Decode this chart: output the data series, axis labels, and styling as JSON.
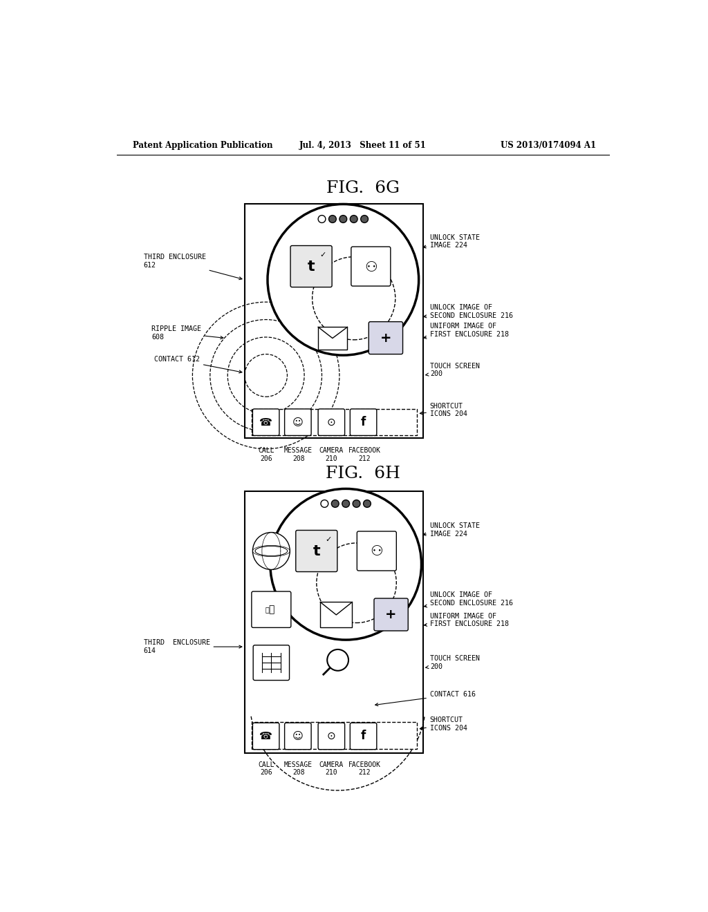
{
  "bg_color": "#ffffff",
  "header_left": "Patent Application Publication",
  "header_mid": "Jul. 4, 2013   Sheet 11 of 51",
  "header_right": "US 2013/0174094 A1",
  "fig6g_title": "FIG.  6G",
  "fig6h_title": "FIG.  6H"
}
